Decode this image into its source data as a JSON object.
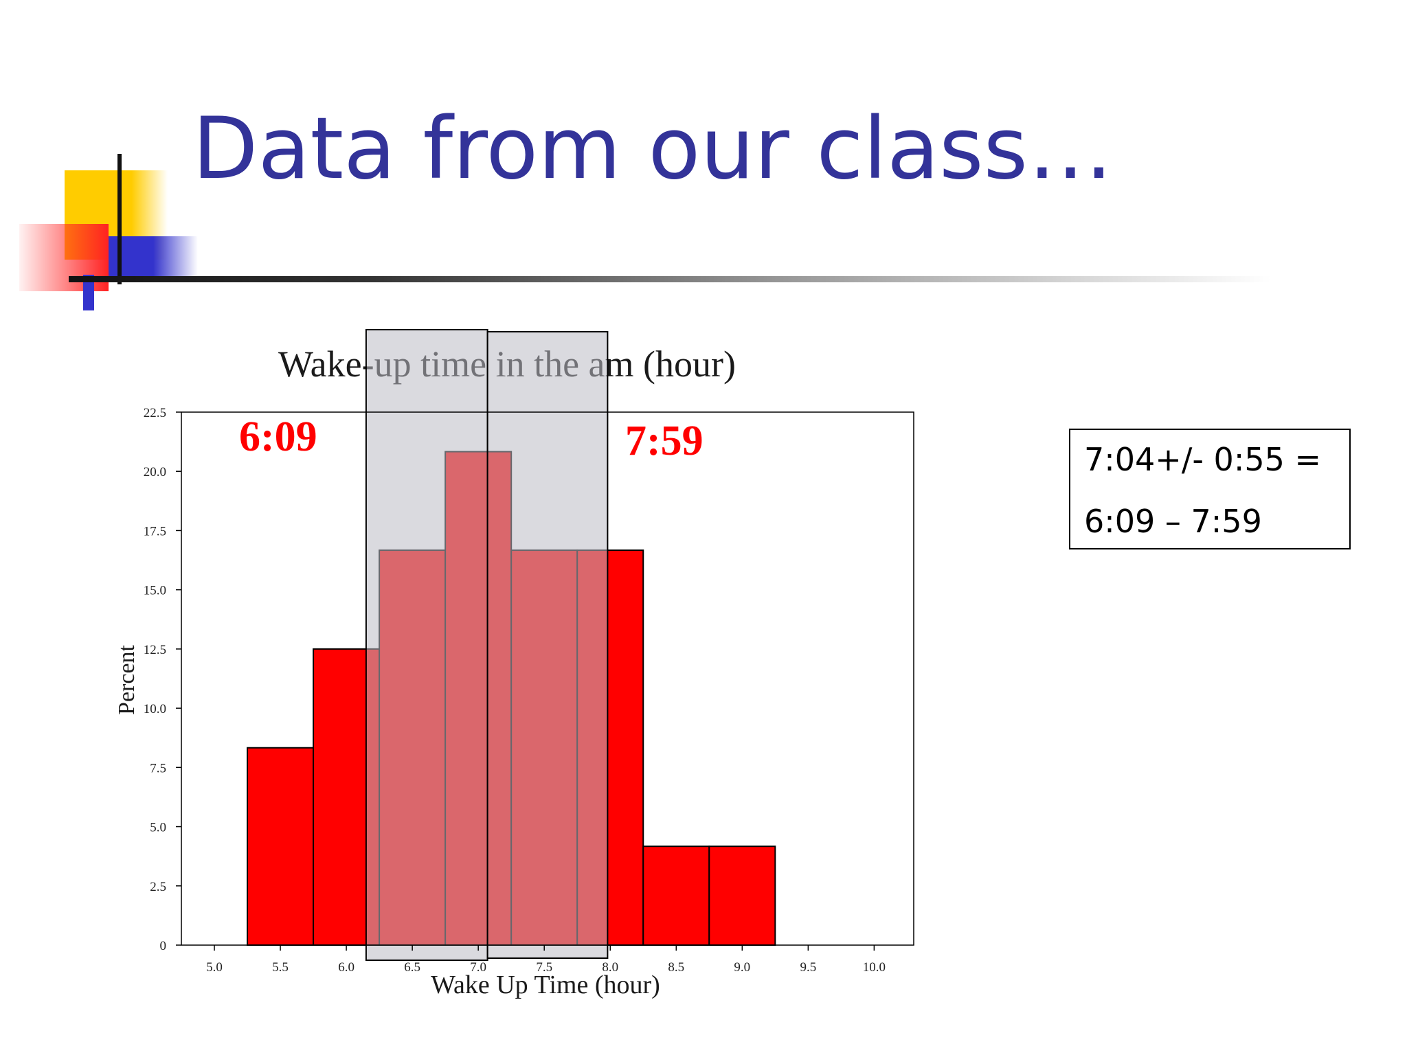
{
  "slide": {
    "title": "Data from our class…",
    "colors": {
      "title": "#333399",
      "bar": "#ff0000",
      "overlay": "#bcbcc4",
      "accent_yellow": "#ffcc00",
      "accent_blue": "#3333cc"
    }
  },
  "info_box": {
    "line1": "7:04+/- 0:55 =",
    "line2": "6:09 – 7:59"
  },
  "chart_data": {
    "type": "bar",
    "title": "Wake-up time in the am (hour)",
    "xlabel": "Wake Up Time (hour)",
    "ylabel": "Percent",
    "xlim": [
      4.75,
      10.3
    ],
    "ylim": [
      0,
      22.5
    ],
    "x_ticks": [
      5.0,
      5.5,
      6.0,
      6.5,
      7.0,
      7.5,
      8.0,
      8.5,
      9.0,
      9.5,
      10.0
    ],
    "x_tick_labels": [
      "5.0",
      "5.5",
      "6.0",
      "6.5",
      "7.0",
      "7.5",
      "8.0",
      "8.5",
      "9.0",
      "9.5",
      "10.0"
    ],
    "y_ticks": [
      0,
      2.5,
      5.0,
      7.5,
      10.0,
      12.5,
      15.0,
      17.5,
      20.0,
      22.5
    ],
    "y_tick_labels": [
      "0",
      "2.5",
      "5.0",
      "7.5",
      "10.0",
      "12.5",
      "15.0",
      "17.5",
      "20.0",
      "22.5"
    ],
    "bin_width": 0.5,
    "bins": [
      {
        "center": 5.5,
        "value": 8.33
      },
      {
        "center": 6.0,
        "value": 12.5
      },
      {
        "center": 6.5,
        "value": 16.67
      },
      {
        "center": 7.0,
        "value": 20.83
      },
      {
        "center": 7.5,
        "value": 16.67
      },
      {
        "center": 8.0,
        "value": 16.67
      },
      {
        "center": 8.5,
        "value": 4.17
      },
      {
        "center": 9.0,
        "value": 4.17
      }
    ],
    "interval": {
      "low": 6.15,
      "mean": 7.07,
      "high": 7.98
    },
    "annotations": {
      "low_label": "6:09",
      "high_label": "7:59"
    },
    "grid": false,
    "legend": "none"
  }
}
